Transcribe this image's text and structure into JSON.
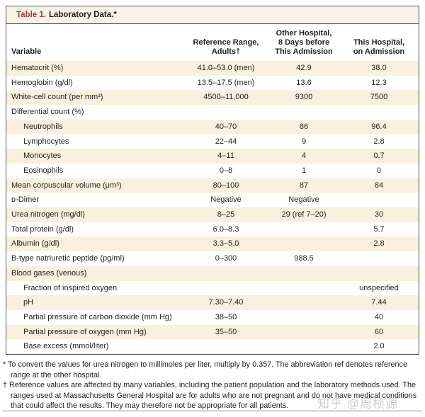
{
  "table_title": {
    "label": "Table 1.",
    "text": "Laboratory Data.*"
  },
  "columns": {
    "variable": "Variable",
    "reference": "Reference Range,\nAdults†",
    "other_hospital": "Other Hospital,\n8 Days before\nThis Admission",
    "this_hospital": "This Hospital,\non Admission"
  },
  "rows": [
    {
      "variable": "Hematocrit (%)",
      "indent": 0,
      "reference": "41.0–53.0 (men)",
      "other": "42.9",
      "this": "38.0"
    },
    {
      "variable": "Hemoglobin (g/dl)",
      "indent": 0,
      "reference": "13.5–17.5 (men)",
      "other": "13.6",
      "this": "12.3"
    },
    {
      "variable": "White-cell count (per mm³)",
      "indent": 0,
      "reference": "4500–11,000",
      "other": "9300",
      "this": "7500"
    },
    {
      "variable": "Differential count (%)",
      "indent": 0,
      "reference": "",
      "other": "",
      "this": ""
    },
    {
      "variable": "Neutrophils",
      "indent": 1,
      "reference": "40–70",
      "other": "86",
      "this": "96.4"
    },
    {
      "variable": "Lymphocytes",
      "indent": 1,
      "reference": "22–44",
      "other": "9",
      "this": "2.8"
    },
    {
      "variable": "Monocytes",
      "indent": 1,
      "reference": "4–11",
      "other": "4",
      "this": "0.7"
    },
    {
      "variable": "Eosinophils",
      "indent": 1,
      "reference": "0–8",
      "other": "1",
      "this": "0"
    },
    {
      "variable": "Mean corpuscular volume (μm³)",
      "indent": 0,
      "reference": "80–100",
      "other": "87",
      "this": "84"
    },
    {
      "variable": "ᴅ-Dimer",
      "indent": 0,
      "reference": "Negative",
      "other": "Negative",
      "this": ""
    },
    {
      "variable": "Urea nitrogen (mg/dl)",
      "indent": 0,
      "reference": "8–25",
      "other": "29 (ref 7–20)",
      "this": "30"
    },
    {
      "variable": "Total protein (g/dl)",
      "indent": 0,
      "reference": "6.0–8.3",
      "other": "",
      "this": "5.7"
    },
    {
      "variable": "Albumin (g/dl)",
      "indent": 0,
      "reference": "3.3–5.0",
      "other": "",
      "this": "2.8"
    },
    {
      "variable": "B-type natriuretic peptide (pg/ml)",
      "indent": 0,
      "reference": "0–300",
      "other": "988.5",
      "this": ""
    },
    {
      "variable": "Blood gases (venous)",
      "indent": 0,
      "reference": "",
      "other": "",
      "this": ""
    },
    {
      "variable": "Fraction of inspired oxygen",
      "indent": 1,
      "reference": "",
      "other": "",
      "this": "unspecified"
    },
    {
      "variable": "pH",
      "indent": 1,
      "reference": "7.30–7.40",
      "other": "",
      "this": "7.44"
    },
    {
      "variable": "Partial pressure of carbon dioxide (mm Hg)",
      "indent": 1,
      "reference": "38–50",
      "other": "",
      "this": "40"
    },
    {
      "variable": "Partial pressure of oxygen (mm Hg)",
      "indent": 1,
      "reference": "35–50",
      "other": "",
      "this": "60"
    },
    {
      "variable": "Base excess (mmol/liter)",
      "indent": 1,
      "reference": "",
      "other": "",
      "this": "2.0"
    }
  ],
  "footnotes": [
    {
      "mark": "*",
      "text": "To convert the values for urea nitrogen to millimoles per liter, multiply by 0.357. The abbreviation ref denotes reference range at the other hospital."
    },
    {
      "mark": "†",
      "text": "Reference values are affected by many variables, including the patient population and the laboratory methods used. The ranges used at Massachusetts General Hospital are for adults who are not pregnant and do not have medical conditions that could affect the results. They may therefore not be appropriate for all patients."
    }
  ],
  "watermark": "知乎 @周桢源",
  "colors": {
    "accent_red": "#a23b32",
    "stripe_cream": "#f9f1de",
    "title_band_bg": "#f7f3e8",
    "border_dark": "#4d4d4d",
    "text": "#1f1f1f",
    "watermark_gray": "#cbcbcb"
  }
}
